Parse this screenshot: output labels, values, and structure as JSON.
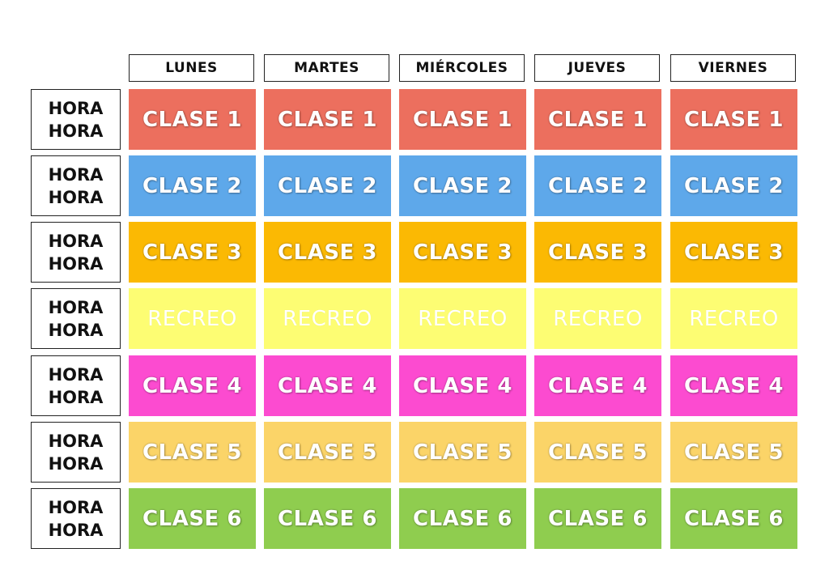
{
  "days": [
    "LUNES",
    "MARTES",
    "MIÉRCOLES",
    "JUEVES",
    "VIERNES"
  ],
  "times": [
    {
      "line1": "HORA",
      "line2": "HORA"
    },
    {
      "line1": "HORA",
      "line2": "HORA"
    },
    {
      "line1": "HORA",
      "line2": "HORA"
    },
    {
      "line1": "HORA",
      "line2": "HORA"
    },
    {
      "line1": "HORA",
      "line2": "HORA"
    },
    {
      "line1": "HORA",
      "line2": "HORA"
    },
    {
      "line1": "HORA",
      "line2": "HORA"
    }
  ],
  "rows": [
    {
      "label": "CLASE 1",
      "color": "#ec6f5e",
      "cells": [
        "CLASE 1",
        "CLASE 1",
        "CLASE 1",
        "CLASE 1",
        "CLASE 1"
      ]
    },
    {
      "label": "CLASE 2",
      "color": "#5ea8ea",
      "cells": [
        "CLASE 2",
        "CLASE 2",
        "CLASE 2",
        "CLASE 2",
        "CLASE 2"
      ]
    },
    {
      "label": "CLASE 3",
      "color": "#fbb903",
      "cells": [
        "CLASE 3",
        "CLASE 3",
        "CLASE 3",
        "CLASE 3",
        "CLASE 3"
      ]
    },
    {
      "label": "RECREO",
      "color": "#fdfd73",
      "cells": [
        "RECREO",
        "RECREO",
        "RECREO",
        "RECREO",
        "RECREO"
      ]
    },
    {
      "label": "CLASE 4",
      "color": "#fc4bd0",
      "cells": [
        "CLASE 4",
        "CLASE 4",
        "CLASE 4",
        "CLASE 4",
        "CLASE 4"
      ]
    },
    {
      "label": "CLASE 5",
      "color": "#fbd468",
      "cells": [
        "CLASE 5",
        "CLASE 5",
        "CLASE 5",
        "CLASE 5",
        "CLASE 5"
      ]
    },
    {
      "label": "CLASE 6",
      "color": "#8fcd4f",
      "cells": [
        "CLASE 6",
        "CLASE 6",
        "CLASE 6",
        "CLASE 6",
        "CLASE 6"
      ]
    }
  ]
}
